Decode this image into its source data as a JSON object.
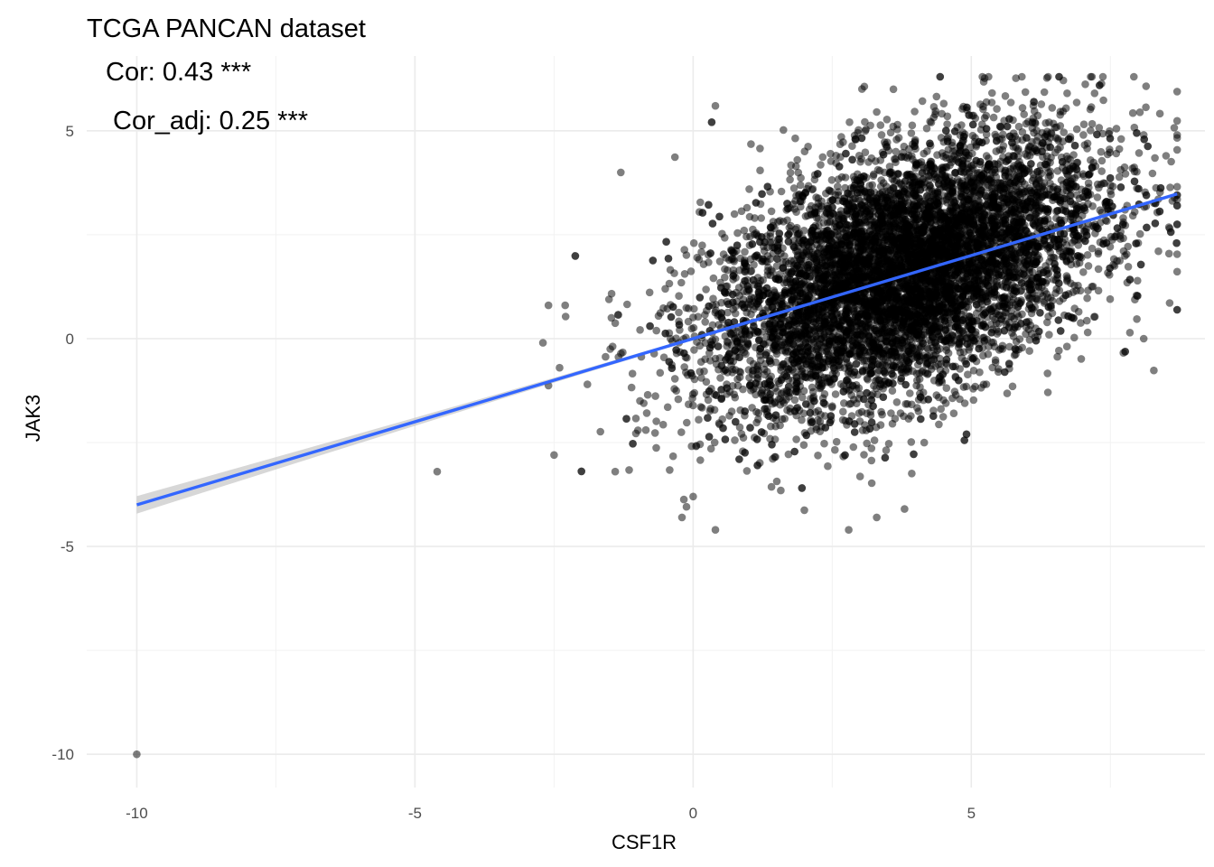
{
  "chart_data": {
    "type": "scatter",
    "title": "TCGA PANCAN dataset",
    "annotations": [
      "Cor: 0.43 ***",
      "Cor_adj: 0.25 ***"
    ],
    "xlabel": "CSF1R",
    "ylabel": "JAK3",
    "xlim": [
      -10.9,
      9.2
    ],
    "ylim": [
      -10.8,
      6.8
    ],
    "x_ticks": [
      -10,
      -5,
      0,
      5
    ],
    "x_tick_labels": [
      "-10",
      "-5",
      "0",
      "5"
    ],
    "y_ticks": [
      -10,
      -5,
      0,
      5
    ],
    "y_tick_labels": [
      "-10",
      "-5",
      "0",
      "5"
    ],
    "grid": true,
    "legend": "none",
    "point_color": "#000000",
    "point_alpha": 0.5,
    "fit": {
      "method": "linear",
      "color": "#3366FF",
      "ci_color": "#BDBDBD",
      "x_range": [
        -10,
        8.7
      ],
      "intercept": 0.0,
      "slope": 0.4
    },
    "points_summary": {
      "approx_count": 8000,
      "center": [
        3.8,
        1.6
      ],
      "x_range": [
        -2.6,
        8.7
      ],
      "y_range": [
        -4.6,
        6.3
      ]
    },
    "outliers": [
      [
        -10.0,
        -10.0
      ],
      [
        -4.6,
        -3.2
      ],
      [
        -2.6,
        0.8
      ],
      [
        -2.7,
        -0.1
      ],
      [
        -2.5,
        -2.8
      ],
      [
        -2.3,
        0.8
      ],
      [
        -2.4,
        -0.7
      ],
      [
        -1.9,
        -1.1
      ],
      [
        -1.3,
        4.0
      ],
      [
        -1.4,
        -3.2
      ],
      [
        0.0,
        -3.8
      ],
      [
        0.4,
        -4.6
      ],
      [
        0.4,
        5.6
      ],
      [
        -0.2,
        -4.3
      ],
      [
        3.3,
        -4.3
      ],
      [
        3.8,
        -4.1
      ],
      [
        5.2,
        6.3
      ],
      [
        3.6,
        6.0
      ],
      [
        8.1,
        4.9
      ],
      [
        8.5,
        4.4
      ],
      [
        8.1,
        0.0
      ],
      [
        8.0,
        2.3
      ],
      [
        7.8,
        3.2
      ]
    ]
  }
}
